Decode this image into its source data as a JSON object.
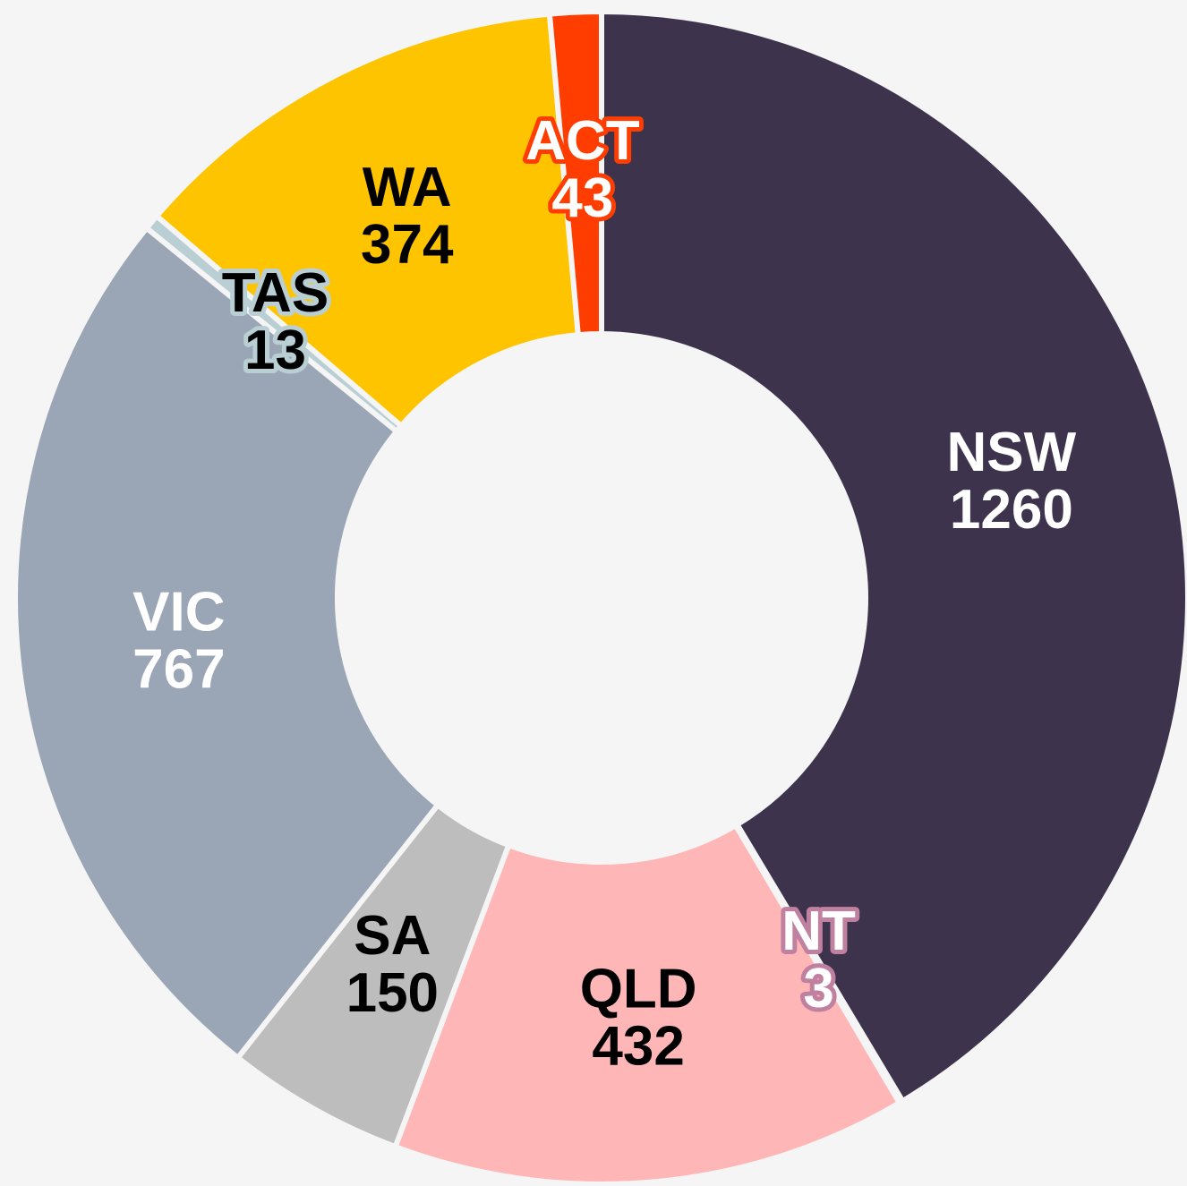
{
  "chart_data": {
    "type": "donut",
    "categories": [
      "NSW",
      "NT",
      "QLD",
      "SA",
      "VIC",
      "TAS",
      "WA",
      "ACT"
    ],
    "values": [
      1260,
      3,
      432,
      150,
      767,
      13,
      374,
      43
    ],
    "colors": [
      "#3d334d",
      "#c0809f",
      "#ffb6b6",
      "#bdbdbd",
      "#9aa5b5",
      "#b9cfd4",
      "#ffc400",
      "#ff3d00"
    ]
  }
}
